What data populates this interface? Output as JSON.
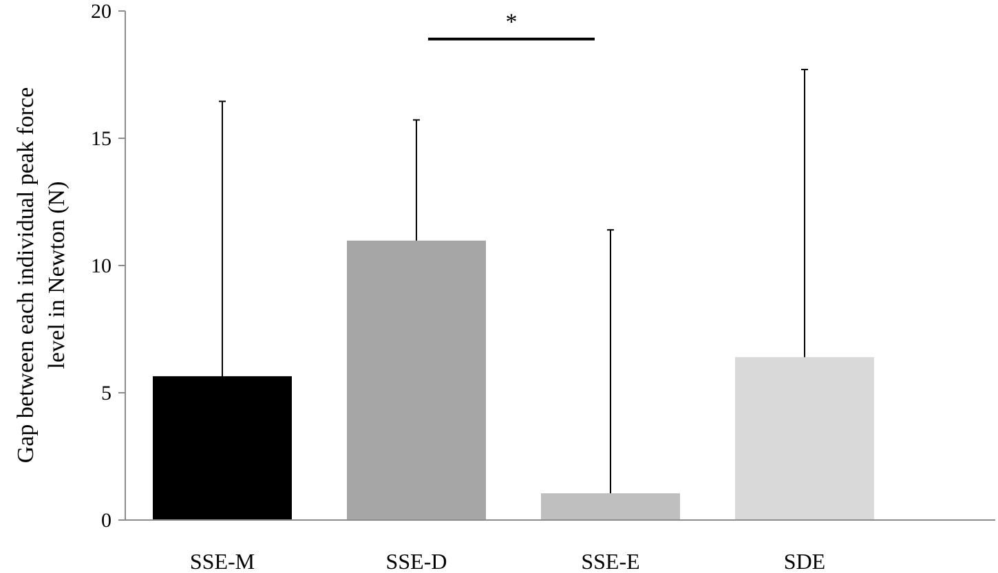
{
  "chart_data": {
    "type": "bar",
    "ylabel_lines": [
      "Gap between each individual peak force",
      "level in Newton (N)"
    ],
    "ylim": [
      0,
      20
    ],
    "yticks": [
      "0",
      "5",
      "10",
      "15",
      "20"
    ],
    "ytick_values": [
      0,
      5,
      10,
      15,
      20
    ],
    "categories": [
      "SSE-M",
      "SSE-D",
      "SSE-E",
      "SDE"
    ],
    "values": [
      5.65,
      10.98,
      1.05,
      6.4
    ],
    "error_upper": [
      16.45,
      15.72,
      11.4,
      17.7
    ],
    "colors": [
      "#000000",
      "#a6a6a6",
      "#bfbfbf",
      "#d9d9d9"
    ],
    "significance": {
      "label": "*",
      "from_category": "SSE-D",
      "to_category": "SSE-E",
      "at_value": 18.9
    },
    "grid": false,
    "legend": "none"
  }
}
